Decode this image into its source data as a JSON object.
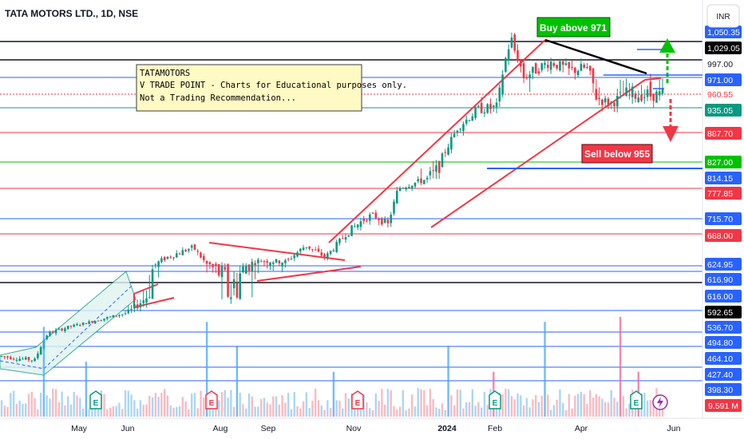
{
  "header": {
    "title": "TATA MOTORS LTD., 1D, NSE",
    "currency": "INR"
  },
  "note": {
    "lines": [
      "TATAMOTORS",
      "V TRADE POINT - Charts for Educational purposes only.",
      "Not a Trading Recommendation..."
    ]
  },
  "callouts": {
    "buy": {
      "text": "Buy above 971",
      "color": "#00c100"
    },
    "sell": {
      "text": "Sell below 955",
      "color": "#f23645"
    }
  },
  "volume_badge": "9.591 M",
  "chart_data": {
    "type": "candlestick",
    "title": "TATA MOTORS LTD., 1D, NSE",
    "x_ticks": [
      "May",
      "Jun",
      "Aug",
      "Sep",
      "Nov",
      "2024",
      "Feb",
      "Apr",
      "Jun"
    ],
    "y_range_approx": [
      390,
      1045
    ],
    "price_axis_labels": [
      {
        "label": "1,050.35",
        "bg": "#2962ff",
        "fg": "#ffffff"
      },
      {
        "label": "1,029.05",
        "bg": "#000000",
        "fg": "#ffffff"
      },
      {
        "label": "997.00",
        "bg": "#ffffff",
        "fg": "#131722"
      },
      {
        "label": "971.00",
        "bg": "#2962ff",
        "fg": "#ffffff"
      },
      {
        "label": "960.55",
        "bg": "#ffffff",
        "fg": "#f23645"
      },
      {
        "label": "935.05",
        "bg": "#089981",
        "fg": "#ffffff"
      },
      {
        "label": "887.70",
        "bg": "#f23645",
        "fg": "#ffffff"
      },
      {
        "label": "827.00",
        "bg": "#00c100",
        "fg": "#ffffff"
      },
      {
        "label": "814.15",
        "bg": "#2962ff",
        "fg": "#ffffff"
      },
      {
        "label": "777.85",
        "bg": "#f23645",
        "fg": "#ffffff"
      },
      {
        "label": "715.70",
        "bg": "#2962ff",
        "fg": "#ffffff"
      },
      {
        "label": "688.00",
        "bg": "#f23645",
        "fg": "#ffffff"
      },
      {
        "label": "624.95",
        "bg": "#2962ff",
        "fg": "#ffffff"
      },
      {
        "label": "616.90",
        "bg": "#2962ff",
        "fg": "#ffffff"
      },
      {
        "label": "616.00",
        "bg": "#2962ff",
        "fg": "#ffffff"
      },
      {
        "label": "592.65",
        "bg": "#000000",
        "fg": "#ffffff"
      },
      {
        "label": "536.70",
        "bg": "#2962ff",
        "fg": "#ffffff"
      },
      {
        "label": "494.80",
        "bg": "#2962ff",
        "fg": "#ffffff"
      },
      {
        "label": "464.10",
        "bg": "#2962ff",
        "fg": "#ffffff"
      },
      {
        "label": "427.40",
        "bg": "#2962ff",
        "fg": "#ffffff"
      },
      {
        "label": "398.30",
        "bg": "#2962ff",
        "fg": "#ffffff"
      }
    ],
    "horizontal_levels": [
      {
        "price": 1050.35,
        "color": "#131722"
      },
      {
        "price": 1029.05,
        "color": "#131722"
      },
      {
        "price": 971.0,
        "color": "#2962ff"
      },
      {
        "price": 960.55,
        "color": "#f23645"
      },
      {
        "price": 935.05,
        "color": "#089981"
      },
      {
        "price": 887.7,
        "color": "#f23645"
      },
      {
        "price": 827.0,
        "color": "#00c100"
      },
      {
        "price": 777.85,
        "color": "#f23645"
      },
      {
        "price": 715.7,
        "color": "#2962ff"
      },
      {
        "price": 688.0,
        "color": "#f23645"
      },
      {
        "price": 624.95,
        "color": "#2962ff"
      },
      {
        "price": 616.9,
        "color": "#2962ff"
      },
      {
        "price": 592.65,
        "color": "#131722"
      },
      {
        "price": 536.7,
        "color": "#2962ff"
      },
      {
        "price": 494.8,
        "color": "#2962ff"
      },
      {
        "price": 464.1,
        "color": "#2962ff"
      },
      {
        "price": 427.4,
        "color": "#2962ff"
      },
      {
        "price": 398.3,
        "color": "#2962ff"
      }
    ],
    "price_path_approx": [
      [
        0,
        468
      ],
      [
        0.05,
        460
      ],
      [
        0.07,
        520
      ],
      [
        0.14,
        560
      ],
      [
        0.19,
        590
      ],
      [
        0.25,
        640
      ],
      [
        0.29,
        662
      ],
      [
        0.31,
        625
      ],
      [
        0.35,
        615
      ],
      [
        0.39,
        633
      ],
      [
        0.43,
        630
      ],
      [
        0.46,
        666
      ],
      [
        0.49,
        640
      ],
      [
        0.52,
        690
      ],
      [
        0.56,
        725
      ],
      [
        0.585,
        705
      ],
      [
        0.6,
        790
      ],
      [
        0.66,
        820
      ],
      [
        0.69,
        900
      ],
      [
        0.72,
        935
      ],
      [
        0.75,
        940
      ],
      [
        0.77,
        1045
      ],
      [
        0.79,
        975
      ],
      [
        0.83,
        1000
      ],
      [
        0.86,
        985
      ],
      [
        0.885,
        990
      ],
      [
        0.9,
        955
      ],
      [
        0.92,
        945
      ],
      [
        0.94,
        958
      ]
    ]
  },
  "colors": {
    "up": "#089981",
    "down": "#f23645",
    "trend": "#f23645",
    "channel": "#089981"
  }
}
